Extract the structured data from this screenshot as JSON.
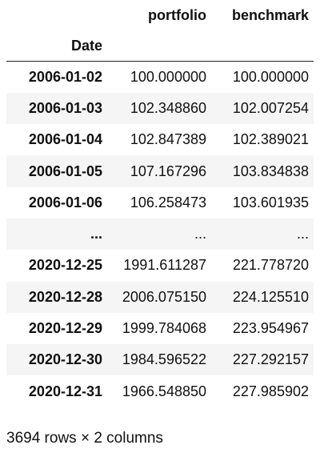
{
  "table": {
    "columns": [
      "portfolio",
      "benchmark"
    ],
    "index_name": "Date",
    "rows": [
      {
        "date": "2006-01-02",
        "portfolio": "100.000000",
        "benchmark": "100.000000"
      },
      {
        "date": "2006-01-03",
        "portfolio": "102.348860",
        "benchmark": "102.007254"
      },
      {
        "date": "2006-01-04",
        "portfolio": "102.847389",
        "benchmark": "102.389021"
      },
      {
        "date": "2006-01-05",
        "portfolio": "107.167296",
        "benchmark": "103.834838"
      },
      {
        "date": "2006-01-06",
        "portfolio": "106.258473",
        "benchmark": "103.601935"
      },
      {
        "date": "...",
        "portfolio": "...",
        "benchmark": "..."
      },
      {
        "date": "2020-12-25",
        "portfolio": "1991.611287",
        "benchmark": "221.778720"
      },
      {
        "date": "2020-12-28",
        "portfolio": "2006.075150",
        "benchmark": "224.125510"
      },
      {
        "date": "2020-12-29",
        "portfolio": "1999.784068",
        "benchmark": "223.954967"
      },
      {
        "date": "2020-12-30",
        "portfolio": "1984.596522",
        "benchmark": "227.292157"
      },
      {
        "date": "2020-12-31",
        "portfolio": "1966.548850",
        "benchmark": "227.985902"
      }
    ]
  },
  "shape_text": "3694 rows × 2 columns"
}
